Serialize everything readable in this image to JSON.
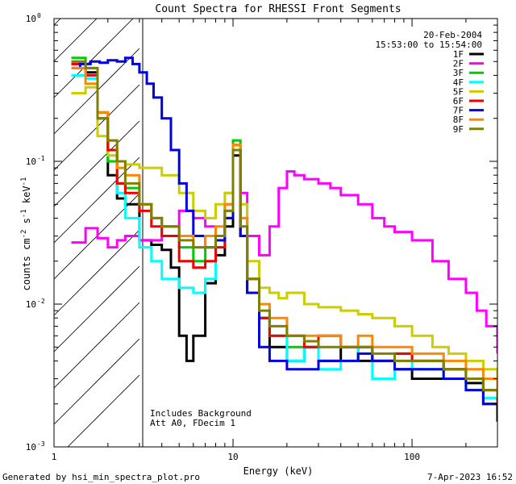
{
  "chart_data": {
    "type": "line",
    "title": "Count Spectra for RHESSI Front Segments",
    "xlabel": "Energy (keV)",
    "ylabel_parts": [
      "counts cm",
      "-2",
      " s",
      "-1",
      " keV",
      "-1"
    ],
    "xscale": "log",
    "yscale": "log",
    "xlim": [
      1,
      300
    ],
    "ylim": [
      0.001,
      1
    ],
    "x_ticks": [
      {
        "value": 1,
        "label": "1"
      },
      {
        "value": 10,
        "label": "10"
      },
      {
        "value": 100,
        "label": "100"
      }
    ],
    "y_ticks": [
      {
        "value": 0.001,
        "base": "10",
        "exp": "-3"
      },
      {
        "value": 0.01,
        "base": "10",
        "exp": "-2"
      },
      {
        "value": 0.1,
        "base": "10",
        "exp": "-1"
      },
      {
        "value": 1,
        "base": "10",
        "exp": "0"
      }
    ],
    "date": "20-Feb-2004",
    "time_range": "15:53:00 to 15:54:00",
    "shaded_region": {
      "from": 1,
      "to": 3,
      "pattern": "diagonal-hatch"
    },
    "notes": [
      "Includes Background",
      "Att A0, FDecim 1"
    ],
    "series": [
      {
        "name": "1F",
        "color": "#000000",
        "points": [
          [
            1.25,
            0.48
          ],
          [
            1.5,
            0.42
          ],
          [
            1.75,
            0.22
          ],
          [
            2,
            0.08
          ],
          [
            2.25,
            0.055
          ],
          [
            2.5,
            0.05
          ],
          [
            3,
            0.028
          ],
          [
            3.5,
            0.026
          ],
          [
            4,
            0.024
          ],
          [
            4.5,
            0.018
          ],
          [
            5,
            0.006
          ],
          [
            5.5,
            0.004
          ],
          [
            6,
            0.006
          ],
          [
            7,
            0.014
          ],
          [
            8,
            0.022
          ],
          [
            9,
            0.035
          ],
          [
            10,
            0.11
          ],
          [
            11,
            0.03
          ],
          [
            12,
            0.012
          ],
          [
            14,
            0.008
          ],
          [
            16,
            0.005
          ],
          [
            20,
            0.004
          ],
          [
            25,
            0.005
          ],
          [
            30,
            0.004
          ],
          [
            40,
            0.005
          ],
          [
            50,
            0.004
          ],
          [
            60,
            0.004
          ],
          [
            80,
            0.0035
          ],
          [
            100,
            0.003
          ],
          [
            150,
            0.003
          ],
          [
            200,
            0.0028
          ],
          [
            250,
            0.002
          ],
          [
            300,
            0.0015
          ]
        ]
      },
      {
        "name": "2F",
        "color": "#ff00ff",
        "points": [
          [
            1.25,
            0.027
          ],
          [
            1.5,
            0.034
          ],
          [
            1.75,
            0.029
          ],
          [
            2,
            0.025
          ],
          [
            2.25,
            0.028
          ],
          [
            2.5,
            0.03
          ],
          [
            3,
            0.028
          ],
          [
            4,
            0.035
          ],
          [
            5,
            0.045
          ],
          [
            6,
            0.04
          ],
          [
            7,
            0.035
          ],
          [
            8,
            0.03
          ],
          [
            9,
            0.05
          ],
          [
            10,
            0.13
          ],
          [
            11,
            0.06
          ],
          [
            12,
            0.03
          ],
          [
            14,
            0.022
          ],
          [
            16,
            0.035
          ],
          [
            18,
            0.065
          ],
          [
            20,
            0.085
          ],
          [
            22,
            0.08
          ],
          [
            25,
            0.075
          ],
          [
            30,
            0.07
          ],
          [
            35,
            0.065
          ],
          [
            40,
            0.058
          ],
          [
            50,
            0.05
          ],
          [
            60,
            0.04
          ],
          [
            70,
            0.035
          ],
          [
            80,
            0.032
          ],
          [
            100,
            0.028
          ],
          [
            130,
            0.02
          ],
          [
            160,
            0.015
          ],
          [
            200,
            0.012
          ],
          [
            230,
            0.009
          ],
          [
            260,
            0.007
          ],
          [
            300,
            0.0045
          ]
        ]
      },
      {
        "name": "3F",
        "color": "#00cc00",
        "points": [
          [
            1.25,
            0.53
          ],
          [
            1.5,
            0.45
          ],
          [
            1.75,
            0.2
          ],
          [
            2,
            0.1
          ],
          [
            2.25,
            0.07
          ],
          [
            2.5,
            0.065
          ],
          [
            3,
            0.05
          ],
          [
            3.5,
            0.04
          ],
          [
            4,
            0.035
          ],
          [
            5,
            0.025
          ],
          [
            6,
            0.02
          ],
          [
            7,
            0.025
          ],
          [
            8,
            0.03
          ],
          [
            9,
            0.045
          ],
          [
            10,
            0.14
          ],
          [
            11,
            0.04
          ],
          [
            12,
            0.015
          ],
          [
            14,
            0.008
          ],
          [
            16,
            0.006
          ],
          [
            20,
            0.005
          ],
          [
            25,
            0.005
          ],
          [
            30,
            0.006
          ],
          [
            40,
            0.005
          ],
          [
            50,
            0.005
          ],
          [
            60,
            0.004
          ],
          [
            80,
            0.0045
          ],
          [
            100,
            0.004
          ],
          [
            150,
            0.0035
          ],
          [
            200,
            0.003
          ],
          [
            250,
            0.0025
          ],
          [
            300,
            0.002
          ]
        ]
      },
      {
        "name": "4F",
        "color": "#00ffff",
        "points": [
          [
            1.25,
            0.4
          ],
          [
            1.5,
            0.38
          ],
          [
            1.75,
            0.2
          ],
          [
            2,
            0.11
          ],
          [
            2.25,
            0.06
          ],
          [
            2.5,
            0.04
          ],
          [
            3,
            0.025
          ],
          [
            3.5,
            0.02
          ],
          [
            4,
            0.015
          ],
          [
            5,
            0.013
          ],
          [
            6,
            0.012
          ],
          [
            7,
            0.015
          ],
          [
            8,
            0.03
          ],
          [
            9,
            0.06
          ],
          [
            10,
            0.13
          ],
          [
            11,
            0.035
          ],
          [
            12,
            0.015
          ],
          [
            14,
            0.01
          ],
          [
            16,
            0.006
          ],
          [
            20,
            0.004
          ],
          [
            25,
            0.005
          ],
          [
            30,
            0.0035
          ],
          [
            40,
            0.004
          ],
          [
            50,
            0.005
          ],
          [
            60,
            0.003
          ],
          [
            80,
            0.004
          ],
          [
            100,
            0.0035
          ],
          [
            150,
            0.003
          ],
          [
            200,
            0.0025
          ],
          [
            250,
            0.0022
          ],
          [
            300,
            0.002
          ]
        ]
      },
      {
        "name": "5F",
        "color": "#cccc00",
        "points": [
          [
            1.25,
            0.3
          ],
          [
            1.5,
            0.33
          ],
          [
            1.75,
            0.15
          ],
          [
            2,
            0.11
          ],
          [
            2.25,
            0.1
          ],
          [
            2.5,
            0.095
          ],
          [
            3,
            0.09
          ],
          [
            3.5,
            0.09
          ],
          [
            4,
            0.08
          ],
          [
            5,
            0.06
          ],
          [
            6,
            0.045
          ],
          [
            7,
            0.04
          ],
          [
            8,
            0.05
          ],
          [
            9,
            0.06
          ],
          [
            10,
            0.13
          ],
          [
            11,
            0.05
          ],
          [
            12,
            0.02
          ],
          [
            14,
            0.013
          ],
          [
            16,
            0.012
          ],
          [
            18,
            0.011
          ],
          [
            20,
            0.012
          ],
          [
            25,
            0.01
          ],
          [
            30,
            0.0095
          ],
          [
            40,
            0.009
          ],
          [
            50,
            0.0085
          ],
          [
            60,
            0.008
          ],
          [
            80,
            0.007
          ],
          [
            100,
            0.006
          ],
          [
            130,
            0.005
          ],
          [
            160,
            0.0045
          ],
          [
            200,
            0.004
          ],
          [
            250,
            0.0035
          ],
          [
            300,
            0.003
          ]
        ]
      },
      {
        "name": "6F",
        "color": "#ee0000",
        "points": [
          [
            1.25,
            0.48
          ],
          [
            1.5,
            0.4
          ],
          [
            1.75,
            0.2
          ],
          [
            2,
            0.12
          ],
          [
            2.25,
            0.07
          ],
          [
            2.5,
            0.06
          ],
          [
            3,
            0.045
          ],
          [
            3.5,
            0.035
          ],
          [
            4,
            0.03
          ],
          [
            5,
            0.02
          ],
          [
            6,
            0.018
          ],
          [
            7,
            0.02
          ],
          [
            8,
            0.025
          ],
          [
            9,
            0.04
          ],
          [
            10,
            0.12
          ],
          [
            11,
            0.03
          ],
          [
            12,
            0.015
          ],
          [
            14,
            0.008
          ],
          [
            16,
            0.006
          ],
          [
            20,
            0.006
          ],
          [
            25,
            0.005
          ],
          [
            30,
            0.006
          ],
          [
            40,
            0.005
          ],
          [
            50,
            0.005
          ],
          [
            60,
            0.004
          ],
          [
            80,
            0.0045
          ],
          [
            100,
            0.004
          ],
          [
            150,
            0.0035
          ],
          [
            200,
            0.003
          ],
          [
            250,
            0.0025
          ],
          [
            300,
            0.002
          ]
        ]
      },
      {
        "name": "7F",
        "color": "#0000dd",
        "points": [
          [
            1.25,
            0.45
          ],
          [
            1.4,
            0.48
          ],
          [
            1.6,
            0.5
          ],
          [
            1.8,
            0.49
          ],
          [
            2,
            0.51
          ],
          [
            2.25,
            0.5
          ],
          [
            2.5,
            0.53
          ],
          [
            2.75,
            0.48
          ],
          [
            3,
            0.42
          ],
          [
            3.3,
            0.35
          ],
          [
            3.6,
            0.28
          ],
          [
            4,
            0.2
          ],
          [
            4.5,
            0.12
          ],
          [
            5,
            0.07
          ],
          [
            5.5,
            0.045
          ],
          [
            6,
            0.03
          ],
          [
            7,
            0.025
          ],
          [
            8,
            0.028
          ],
          [
            9,
            0.04
          ],
          [
            10,
            0.12
          ],
          [
            11,
            0.03
          ],
          [
            12,
            0.012
          ],
          [
            14,
            0.005
          ],
          [
            16,
            0.004
          ],
          [
            20,
            0.0035
          ],
          [
            25,
            0.0035
          ],
          [
            30,
            0.004
          ],
          [
            40,
            0.004
          ],
          [
            50,
            0.0045
          ],
          [
            60,
            0.004
          ],
          [
            80,
            0.0035
          ],
          [
            100,
            0.0035
          ],
          [
            150,
            0.003
          ],
          [
            200,
            0.0025
          ],
          [
            250,
            0.002
          ],
          [
            300,
            0.002
          ]
        ]
      },
      {
        "name": "8F",
        "color": "#ff8800",
        "points": [
          [
            1.25,
            0.45
          ],
          [
            1.5,
            0.35
          ],
          [
            1.75,
            0.22
          ],
          [
            2,
            0.14
          ],
          [
            2.25,
            0.09
          ],
          [
            2.5,
            0.08
          ],
          [
            3,
            0.05
          ],
          [
            3.5,
            0.04
          ],
          [
            4,
            0.035
          ],
          [
            5,
            0.03
          ],
          [
            6,
            0.025
          ],
          [
            7,
            0.03
          ],
          [
            8,
            0.035
          ],
          [
            9,
            0.05
          ],
          [
            10,
            0.13
          ],
          [
            11,
            0.04
          ],
          [
            12,
            0.015
          ],
          [
            14,
            0.01
          ],
          [
            16,
            0.008
          ],
          [
            20,
            0.006
          ],
          [
            25,
            0.006
          ],
          [
            30,
            0.006
          ],
          [
            40,
            0.005
          ],
          [
            50,
            0.006
          ],
          [
            60,
            0.005
          ],
          [
            80,
            0.005
          ],
          [
            100,
            0.0045
          ],
          [
            150,
            0.004
          ],
          [
            200,
            0.0035
          ],
          [
            250,
            0.003
          ],
          [
            300,
            0.0025
          ]
        ]
      },
      {
        "name": "9F",
        "color": "#808000",
        "points": [
          [
            1.25,
            0.5
          ],
          [
            1.5,
            0.45
          ],
          [
            1.75,
            0.2
          ],
          [
            2,
            0.14
          ],
          [
            2.25,
            0.1
          ],
          [
            2.5,
            0.07
          ],
          [
            3,
            0.05
          ],
          [
            3.5,
            0.04
          ],
          [
            4,
            0.035
          ],
          [
            5,
            0.028
          ],
          [
            6,
            0.025
          ],
          [
            7,
            0.025
          ],
          [
            8,
            0.03
          ],
          [
            9,
            0.045
          ],
          [
            10,
            0.12
          ],
          [
            11,
            0.035
          ],
          [
            12,
            0.015
          ],
          [
            14,
            0.009
          ],
          [
            16,
            0.007
          ],
          [
            20,
            0.006
          ],
          [
            25,
            0.0055
          ],
          [
            30,
            0.005
          ],
          [
            40,
            0.005
          ],
          [
            50,
            0.005
          ],
          [
            60,
            0.0045
          ],
          [
            80,
            0.004
          ],
          [
            100,
            0.004
          ],
          [
            150,
            0.0035
          ],
          [
            200,
            0.003
          ],
          [
            250,
            0.0025
          ],
          [
            300,
            0.0022
          ]
        ]
      }
    ]
  },
  "footer": {
    "generated_by": "Generated by hsi_min_spectra_plot.pro",
    "timestamp": "7-Apr-2023 16:52"
  }
}
